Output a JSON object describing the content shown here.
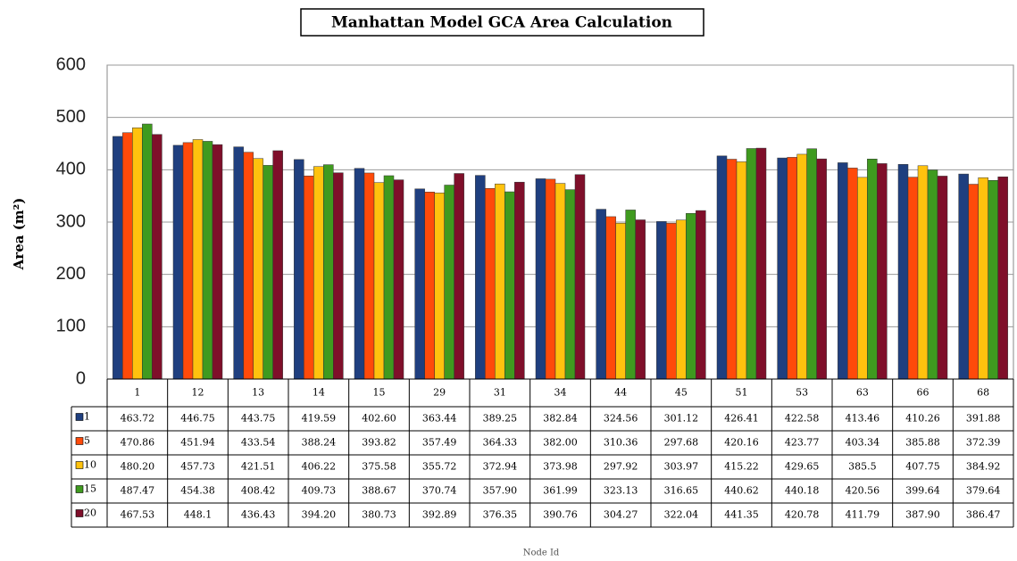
{
  "chart_data": {
    "type": "bar",
    "title": "Manhattan Model GCA Area Calculation",
    "y_label": "Area (m²)",
    "x_label": "Node Id",
    "categories": [
      "1",
      "12",
      "13",
      "14",
      "15",
      "29",
      "31",
      "34",
      "44",
      "45",
      "51",
      "53",
      "63",
      "66",
      "68"
    ],
    "series": [
      {
        "name": "1",
        "color": "#1f3f7f",
        "values": [
          463.72,
          446.75,
          443.75,
          419.59,
          402.6,
          363.44,
          389.25,
          382.84,
          324.56,
          301.12,
          426.41,
          422.58,
          413.46,
          410.26,
          391.88
        ],
        "value_labels": [
          "463.72",
          "446.75",
          "443.75",
          "419.59",
          "402.60",
          "363.44",
          "389.25",
          "382.84",
          "324.56",
          "301.12",
          "426.41",
          "422.58",
          "413.46",
          "410.26",
          "391.88"
        ]
      },
      {
        "name": "5",
        "color": "#ff4a0a",
        "values": [
          470.86,
          451.94,
          433.54,
          388.24,
          393.82,
          357.49,
          364.33,
          382.0,
          310.36,
          297.68,
          420.16,
          423.77,
          403.34,
          385.88,
          372.39
        ],
        "value_labels": [
          "470.86",
          "451.94",
          "433.54",
          "388.24",
          "393.82",
          "357.49",
          "364.33",
          "382.00",
          "310.36",
          "297.68",
          "420.16",
          "423.77",
          "403.34",
          "385.88",
          "372.39"
        ]
      },
      {
        "name": "10",
        "color": "#ffc20e",
        "values": [
          480.2,
          457.73,
          421.51,
          406.22,
          375.58,
          355.72,
          372.94,
          373.98,
          297.92,
          303.97,
          415.22,
          429.65,
          385.5,
          407.75,
          384.92
        ],
        "value_labels": [
          "480.20",
          "457.73",
          "421.51",
          "406.22",
          "375.58",
          "355.72",
          "372.94",
          "373.98",
          "297.92",
          "303.97",
          "415.22",
          "429.65",
          "385.5",
          "407.75",
          "384.92"
        ]
      },
      {
        "name": "15",
        "color": "#3f9a1f",
        "values": [
          487.47,
          454.38,
          408.42,
          409.73,
          388.67,
          370.74,
          357.9,
          361.99,
          323.13,
          316.65,
          440.62,
          440.18,
          420.56,
          399.64,
          379.64
        ],
        "value_labels": [
          "487.47",
          "454.38",
          "408.42",
          "409.73",
          "388.67",
          "370.74",
          "357.90",
          "361.99",
          "323.13",
          "316.65",
          "440.62",
          "440.18",
          "420.56",
          "399.64",
          "379.64"
        ]
      },
      {
        "name": "20",
        "color": "#7f0f2a",
        "values": [
          467.53,
          448.1,
          436.43,
          394.2,
          380.73,
          392.89,
          376.35,
          390.76,
          304.27,
          322.04,
          441.35,
          420.78,
          411.79,
          387.9,
          386.47
        ],
        "value_labels": [
          "467.53",
          "448.1",
          "436.43",
          "394.20",
          "380.73",
          "392.89",
          "376.35",
          "390.76",
          "304.27",
          "322.04",
          "441.35",
          "420.78",
          "411.79",
          "387.90",
          "386.47"
        ]
      }
    ],
    "ylim": [
      0,
      600
    ],
    "yticks": [
      0,
      100,
      200,
      300,
      400,
      500,
      600
    ],
    "grid": true
  }
}
